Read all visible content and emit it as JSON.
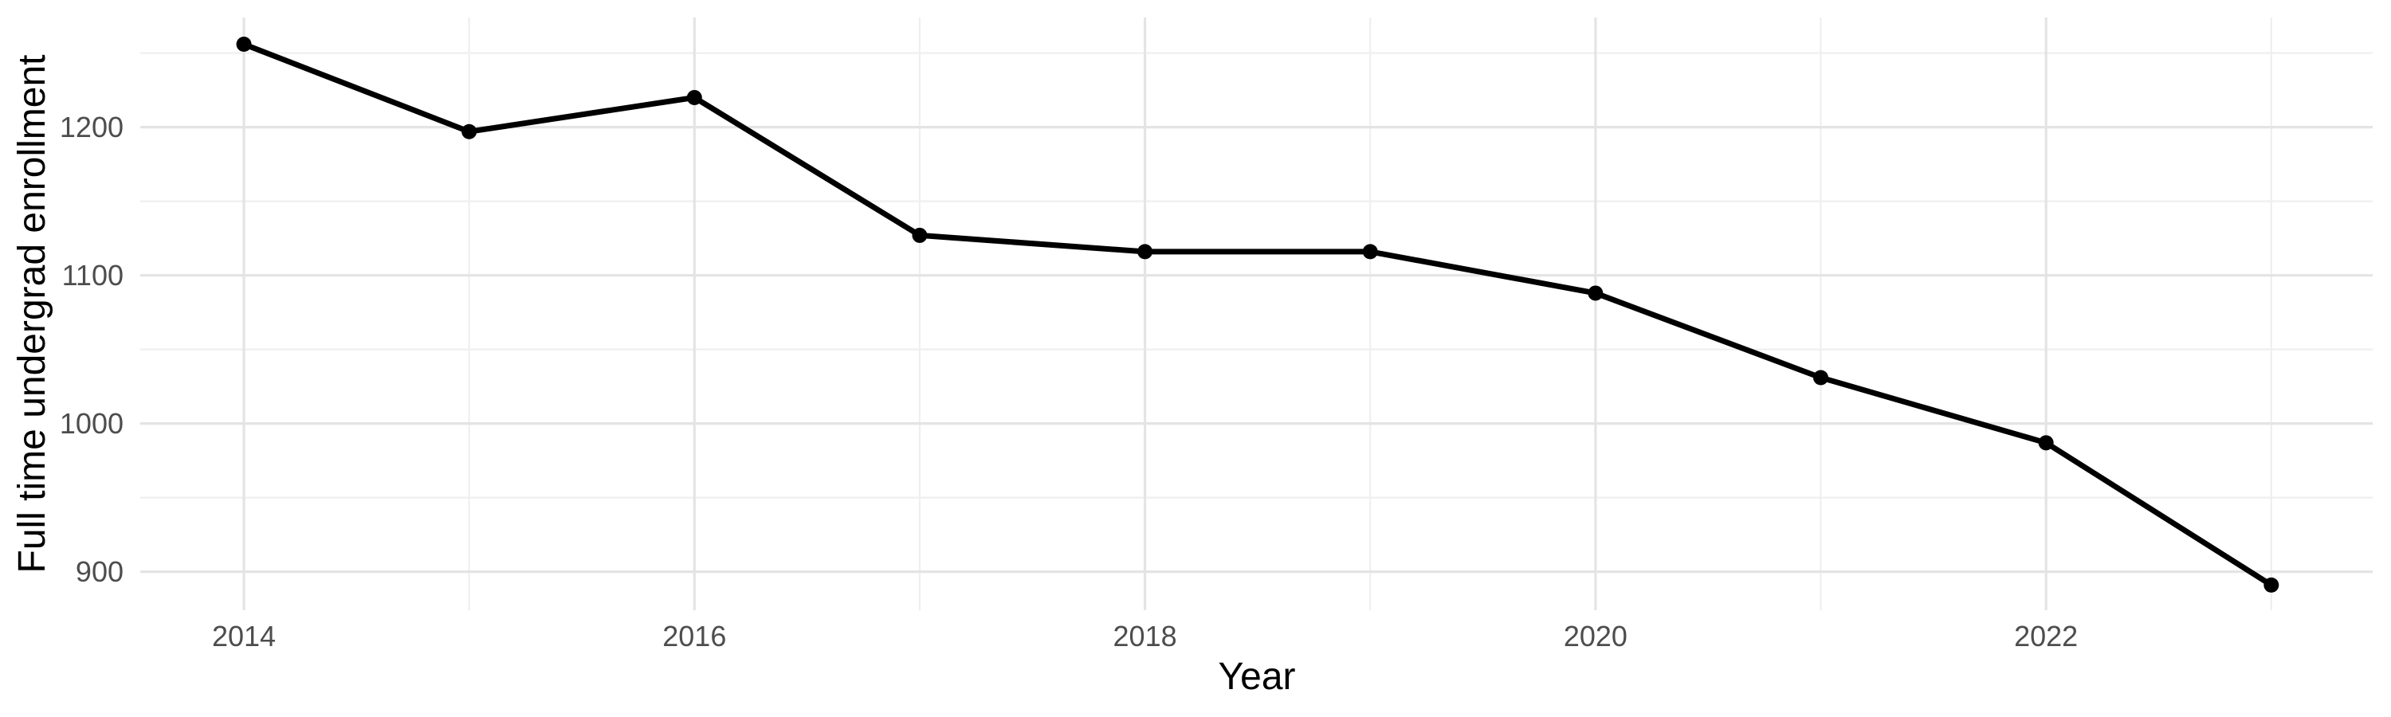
{
  "chart_data": {
    "type": "line",
    "title": "",
    "xlabel": "Year",
    "ylabel": "Full time undergrad enrollment",
    "x": [
      2014,
      2015,
      2016,
      2017,
      2018,
      2019,
      2020,
      2021,
      2022,
      2023
    ],
    "series": [
      {
        "name": "Full time undergrad enrollment",
        "values": [
          1256,
          1197,
          1220,
          1127,
          1116,
          1116,
          1088,
          1031,
          987,
          891
        ]
      }
    ],
    "x_ticks_major": [
      2014,
      2016,
      2018,
      2020,
      2022
    ],
    "x_ticks_minor": [
      2015,
      2017,
      2019,
      2021,
      2023
    ],
    "y_ticks_major": [
      900,
      1000,
      1100,
      1200
    ],
    "y_ticks_minor": [
      950,
      1050,
      1150,
      1250
    ],
    "xlim": [
      2013.54,
      2023.45
    ],
    "ylim": [
      874,
      1274
    ],
    "grid": true,
    "legend": false,
    "colors": {
      "line": "#000000",
      "point": "#000000",
      "tick_label": "#4d4d4d",
      "axis_title": "#000000",
      "grid_major": "#e4e4e4",
      "grid_minor": "#efefef",
      "background": "#ffffff"
    }
  }
}
